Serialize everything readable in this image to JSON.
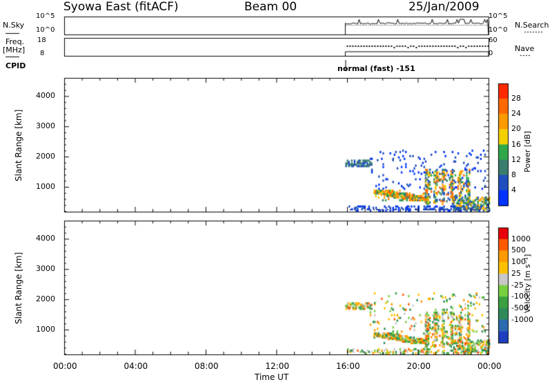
{
  "header": {
    "station": "Syowa East (fitACF)",
    "beam": "Beam 00",
    "date": "25/Jan/2009"
  },
  "status_panels": {
    "nsky_label": "N.Sky",
    "nsearch_label": "N.Search",
    "counts_ticks": [
      "10^5",
      "10^0"
    ],
    "freq_label_line1": "Freq.",
    "freq_label_line2": "[MHz]",
    "freq_ticks": [
      "18",
      "8"
    ],
    "nave_label": "Nave",
    "nave_ticks": [
      "60",
      "0"
    ],
    "cpid_label": "CPID",
    "cpid_text": "normal (fast) -151"
  },
  "colors": {
    "power_scale": [
      "#0033ff",
      "#1f4fbf",
      "#3a7d6e",
      "#2fa84a",
      "#f5d000",
      "#ff9a00",
      "#ff6a00",
      "#ff2a00"
    ],
    "velocity_scale": [
      "#e8000b",
      "#ff5a00",
      "#ff9a00",
      "#ffc000",
      "#c8c8c8",
      "#78d040",
      "#3aa040",
      "#2f8a5a",
      "#2a6ab0",
      "#1f3fc0"
    ]
  },
  "chart_data": [
    {
      "type": "heatmap",
      "panel": "power",
      "ylabel": "Slant Range [km]",
      "ylim": [
        180,
        4600
      ],
      "yticks": [
        "1000",
        "2000",
        "3000",
        "4000"
      ],
      "xlim_hours": [
        0,
        24
      ],
      "colorbar_label": "Power [dB]",
      "colorbar_ticks": [
        "4",
        "8",
        "12",
        "16",
        "20",
        "24",
        "28"
      ],
      "data_window_hours": [
        15.9,
        24.0
      ],
      "echo_regions": [
        {
          "t_start": 15.9,
          "t_end": 17.4,
          "range_km": [
            1650,
            1850
          ],
          "level": "low"
        },
        {
          "t_start": 17.5,
          "t_end": 20.5,
          "range_km": [
            500,
            900
          ],
          "level": "high"
        },
        {
          "t_start": 20.5,
          "t_end": 22.8,
          "range_km": [
            400,
            1500
          ],
          "level": "high"
        },
        {
          "t_start": 22.0,
          "t_end": 24.0,
          "range_km": [
            200,
            600
          ],
          "level": "mid"
        }
      ]
    },
    {
      "type": "heatmap",
      "panel": "velocity",
      "ylabel": "Slant Range [km]",
      "xlabel": "Time UT",
      "ylim": [
        180,
        4600
      ],
      "yticks": [
        "1000",
        "2000",
        "3000",
        "4000"
      ],
      "xlim_hours": [
        0,
        24
      ],
      "xticks": [
        "00:00",
        "04:00",
        "08:00",
        "12:00",
        "16:00",
        "20:00",
        "00:00"
      ],
      "colorbar_label": "Velocity [m s⁻¹]",
      "colorbar_ticks": [
        "1000",
        "500",
        "100",
        "25",
        "-25",
        "-100",
        "-500",
        "-1000"
      ],
      "data_window_hours": [
        15.9,
        24.0
      ]
    }
  ]
}
